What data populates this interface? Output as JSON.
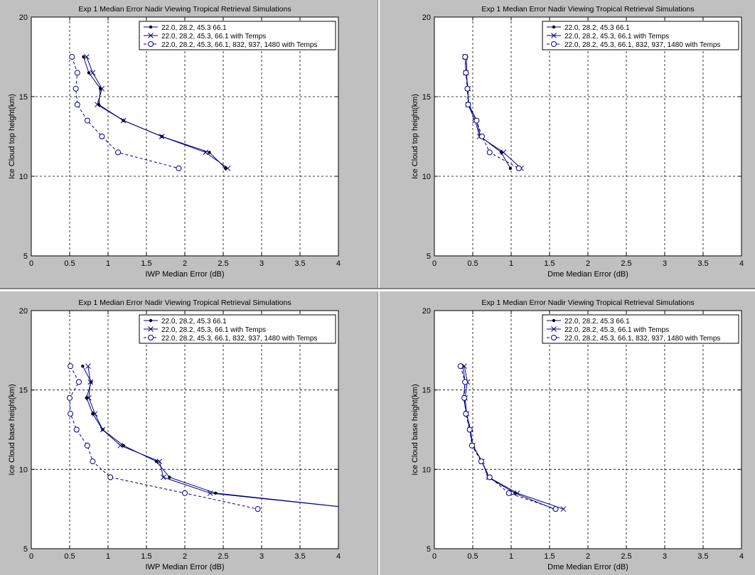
{
  "figure": {
    "background": "#c0c0c0",
    "line_color": "#000080",
    "black": "#000000"
  },
  "chart_data": [
    {
      "type": "line",
      "title": "Exp 1 Median Error Nadir Viewing Tropical Retrieval Simulations",
      "xlabel": "IWP Median Error (dB)",
      "ylabel": "Ice Cloud top height(km)",
      "xlim": [
        0,
        4
      ],
      "ylim": [
        5,
        20
      ],
      "xticks": [
        "0",
        "0.5",
        "1",
        "1.5",
        "2",
        "2.5",
        "3",
        "3.5",
        "4"
      ],
      "yticks": [
        "5",
        "10",
        "15",
        "20"
      ],
      "grid": true,
      "legend_position": "top-right",
      "series": [
        {
          "name": "22.0, 28.2, 45.3 66.1",
          "marker": "dot",
          "style": "solid",
          "x": [
            0.68,
            0.75,
            0.9,
            0.88,
            1.2,
            1.7,
            2.32,
            2.53
          ],
          "y": [
            17.5,
            16.5,
            15.5,
            14.5,
            13.5,
            12.5,
            11.5,
            10.5
          ]
        },
        {
          "name": "22.0, 28.2, 45.3, 66.1 with Temps",
          "marker": "x",
          "style": "solid",
          "x": [
            0.72,
            0.8,
            0.92,
            0.86,
            1.2,
            1.7,
            2.27,
            2.56
          ],
          "y": [
            17.5,
            16.5,
            15.5,
            14.5,
            13.5,
            12.5,
            11.5,
            10.5
          ]
        },
        {
          "name": "22.0, 28.2, 45.3, 66.1, 832, 937, 1480 with Temps",
          "marker": "circle",
          "style": "dashed",
          "x": [
            0.53,
            0.6,
            0.58,
            0.6,
            0.73,
            0.92,
            1.13,
            1.92
          ],
          "y": [
            17.5,
            16.5,
            15.5,
            14.5,
            13.5,
            12.5,
            11.5,
            10.5
          ]
        }
      ]
    },
    {
      "type": "line",
      "title": "Exp 1 Median Error Nadir Viewing Tropical Retrieval Simulations",
      "xlabel": "Dme Median Error (dB)",
      "ylabel": "Ice Cloud top height(km)",
      "xlim": [
        0,
        4
      ],
      "ylim": [
        5,
        20
      ],
      "xticks": [
        "0",
        "0.5",
        "1",
        "1.5",
        "2",
        "2.5",
        "3",
        "3.5",
        "4"
      ],
      "yticks": [
        "5",
        "10",
        "15",
        "20"
      ],
      "grid": true,
      "legend_position": "top-right",
      "series": [
        {
          "name": "22.0, 28.2, 45.3 66.1",
          "marker": "dot",
          "style": "solid",
          "x": [
            0.42,
            0.42,
            0.43,
            0.45,
            0.55,
            0.6,
            0.87,
            0.99
          ],
          "y": [
            17.5,
            16.5,
            15.5,
            14.5,
            13.5,
            12.5,
            11.5,
            10.5
          ]
        },
        {
          "name": "22.0, 28.2, 45.3, 66.1 with Temps",
          "marker": "x",
          "style": "solid",
          "x": [
            0.4,
            0.41,
            0.44,
            0.44,
            0.53,
            0.59,
            0.9,
            1.13
          ],
          "y": [
            17.5,
            16.5,
            15.5,
            14.5,
            13.5,
            12.5,
            11.5,
            10.5
          ]
        },
        {
          "name": "22.0, 28.2, 45.3, 66.1, 832, 937, 1480 with Temps",
          "marker": "circle",
          "style": "dashed",
          "x": [
            0.4,
            0.41,
            0.43,
            0.44,
            0.55,
            0.62,
            0.72,
            1.1
          ],
          "y": [
            17.5,
            16.5,
            15.5,
            14.5,
            13.5,
            12.5,
            11.5,
            10.5
          ]
        }
      ]
    },
    {
      "type": "line",
      "title": "Exp 1 Median Error Nadir Viewing Tropical Retrieval Simulations",
      "xlabel": "IWP Median Error (dB)",
      "ylabel": "Ice Cloud base height(km)",
      "xlim": [
        0,
        4
      ],
      "ylim": [
        5,
        20
      ],
      "xticks": [
        "0",
        "0.5",
        "1",
        "1.5",
        "2",
        "2.5",
        "3",
        "3.5",
        "4"
      ],
      "yticks": [
        "5",
        "10",
        "15",
        "20"
      ],
      "grid": true,
      "legend_position": "top-right",
      "series": [
        {
          "name": "22.0, 28.2, 45.3 66.1",
          "marker": "dot",
          "style": "solid",
          "x": [
            0.67,
            0.78,
            0.72,
            0.8,
            0.93,
            1.2,
            1.63,
            1.8,
            2.4,
            4.3
          ],
          "y": [
            16.5,
            15.5,
            14.5,
            13.5,
            12.5,
            11.5,
            10.5,
            9.5,
            8.5,
            7.5
          ]
        },
        {
          "name": "22.0, 28.2, 45.3, 66.1 with Temps",
          "marker": "x",
          "style": "solid",
          "x": [
            0.74,
            0.77,
            0.75,
            0.83,
            0.93,
            1.16,
            1.67,
            1.72,
            2.33,
            4.3
          ],
          "y": [
            16.5,
            15.5,
            14.5,
            13.5,
            12.5,
            11.5,
            10.5,
            9.5,
            8.5,
            7.5
          ]
        },
        {
          "name": "22.0, 28.2, 45.3, 66.1, 832, 937, 1480 with Temps",
          "marker": "circle",
          "style": "dashed",
          "x": [
            0.51,
            0.62,
            0.5,
            0.51,
            0.59,
            0.73,
            0.8,
            1.03,
            2.0,
            2.95
          ],
          "y": [
            16.5,
            15.5,
            14.5,
            13.5,
            12.5,
            11.5,
            10.5,
            9.5,
            8.5,
            7.5
          ]
        }
      ]
    },
    {
      "type": "line",
      "title": "Exp 1 Median Error Nadir Viewing Tropical Retrieval Simulations",
      "xlabel": "Dme Median Error (dB)",
      "ylabel": "Ice Cloud base height(km)",
      "xlim": [
        0,
        4
      ],
      "ylim": [
        5,
        20
      ],
      "xticks": [
        "0",
        "0.5",
        "1",
        "1.5",
        "2",
        "2.5",
        "3",
        "3.5",
        "4"
      ],
      "yticks": [
        "5",
        "10",
        "15",
        "20"
      ],
      "grid": true,
      "legend_position": "top-right",
      "series": [
        {
          "name": "22.0, 28.2, 45.3 66.1",
          "marker": "dot",
          "style": "solid",
          "x": [
            0.37,
            0.4,
            0.38,
            0.42,
            0.46,
            0.5,
            0.62,
            0.7,
            1.05,
            1.56
          ],
          "y": [
            16.5,
            15.5,
            14.5,
            13.5,
            12.5,
            11.5,
            10.5,
            9.5,
            8.5,
            7.5
          ]
        },
        {
          "name": "22.0, 28.2, 45.3, 66.1 with Temps",
          "marker": "x",
          "style": "solid",
          "x": [
            0.39,
            0.43,
            0.4,
            0.42,
            0.47,
            0.5,
            0.62,
            0.71,
            1.08,
            1.68
          ],
          "y": [
            16.5,
            15.5,
            14.5,
            13.5,
            12.5,
            11.5,
            10.5,
            9.5,
            8.5,
            7.5
          ]
        },
        {
          "name": "22.0, 28.2, 45.3, 66.1, 832, 937, 1480 with Temps",
          "marker": "circle",
          "style": "dashed",
          "x": [
            0.34,
            0.4,
            0.39,
            0.41,
            0.46,
            0.49,
            0.61,
            0.72,
            0.97,
            1.58
          ],
          "y": [
            16.5,
            15.5,
            14.5,
            13.5,
            12.5,
            11.5,
            10.5,
            9.5,
            8.5,
            7.5
          ]
        }
      ]
    }
  ]
}
